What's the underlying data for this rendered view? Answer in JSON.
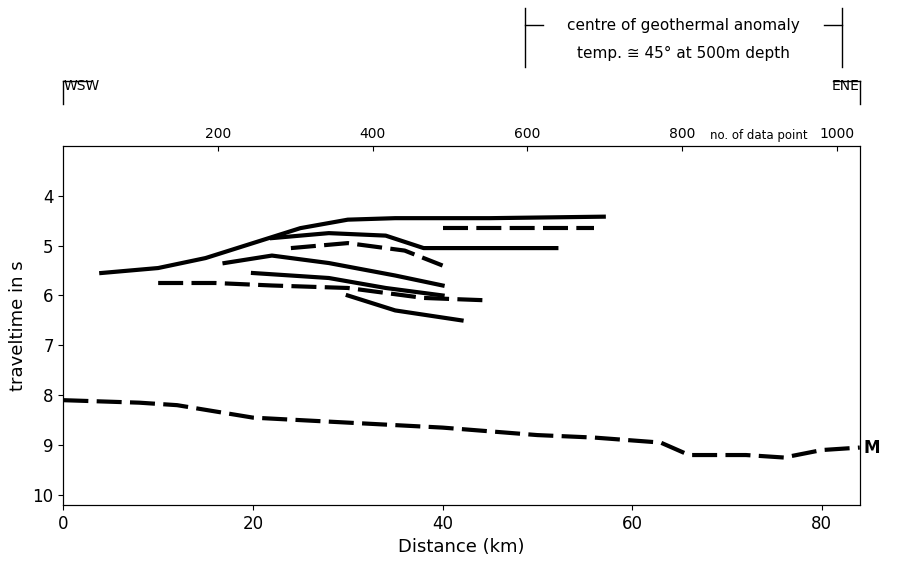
{
  "chart_data": {
    "type": "line",
    "xlabel": "Distance (km)",
    "ylabel": "traveltime in s",
    "xlim": [
      0,
      84
    ],
    "xticks": [
      0,
      20,
      40,
      60,
      80
    ],
    "ylim": [
      10.2,
      3.0
    ],
    "yticks": [
      4,
      5,
      6,
      7,
      8,
      9,
      10
    ],
    "x2label": "no. of data point",
    "x2lim": [
      0,
      1030
    ],
    "x2ticks": [
      200,
      400,
      600,
      800,
      1000
    ],
    "direction_left": "WSW",
    "direction_right": "ENE",
    "annotation": [
      "centre of geothermal anomaly",
      "temp. ≅ 45° at 500m depth"
    ],
    "grid": false,
    "series": [
      {
        "color": "#000000",
        "line_style": "solid",
        "x": [
          4,
          10,
          15,
          20,
          25,
          30,
          35,
          45,
          57
        ],
        "values": [
          5.55,
          5.45,
          5.25,
          4.95,
          4.65,
          4.48,
          4.45,
          4.45,
          4.42
        ]
      },
      {
        "color": "#000000",
        "line_style": "solid",
        "x": [
          22,
          28,
          34,
          38,
          52
        ],
        "values": [
          4.85,
          4.75,
          4.8,
          5.05,
          5.05
        ]
      },
      {
        "color": "#000000",
        "line_style": "dashed",
        "x": [
          40,
          48,
          56
        ],
        "values": [
          4.65,
          4.65,
          4.65
        ]
      },
      {
        "color": "#000000",
        "line_style": "dashed",
        "x": [
          24,
          30,
          36,
          40
        ],
        "values": [
          5.05,
          4.95,
          5.1,
          5.4
        ]
      },
      {
        "color": "#000000",
        "line_style": "solid",
        "x": [
          17,
          22,
          28,
          35,
          40
        ],
        "values": [
          5.35,
          5.2,
          5.35,
          5.6,
          5.8
        ]
      },
      {
        "color": "#000000",
        "line_style": "dashed",
        "x": [
          10,
          16,
          22,
          30,
          38,
          45
        ],
        "values": [
          5.75,
          5.75,
          5.8,
          5.85,
          6.05,
          6.1
        ]
      },
      {
        "color": "#000000",
        "line_style": "solid",
        "x": [
          20,
          28,
          34,
          40
        ],
        "values": [
          5.55,
          5.65,
          5.85,
          6.0
        ]
      },
      {
        "color": "#000000",
        "line_style": "solid",
        "x": [
          30,
          35,
          42
        ],
        "values": [
          6.0,
          6.3,
          6.5
        ]
      },
      {
        "name": "M",
        "color": "#000000",
        "line_style": "dashed",
        "x": [
          0,
          8,
          12,
          20,
          30,
          40,
          50,
          56,
          63,
          66,
          72,
          76,
          80,
          84
        ],
        "values": [
          8.1,
          8.15,
          8.2,
          8.45,
          8.55,
          8.65,
          8.8,
          8.85,
          8.95,
          9.2,
          9.2,
          9.25,
          9.1,
          9.05
        ]
      }
    ]
  }
}
